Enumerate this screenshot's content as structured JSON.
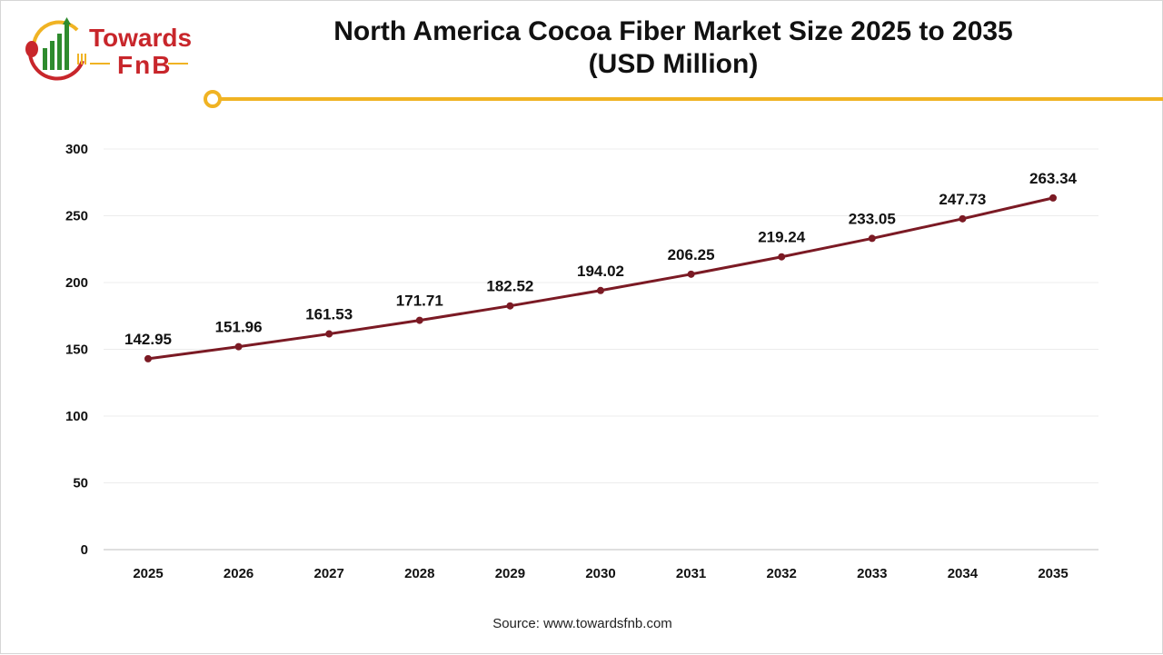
{
  "logo": {
    "line1": "Towards",
    "line2": "FnB"
  },
  "title_line1": "North America Cocoa Fiber Market Size 2025 to 2035",
  "title_line2": "(USD Million)",
  "source": "Source: www.towardsfnb.com",
  "colors": {
    "line": "#7b1a24",
    "accent": "#f0b323",
    "brand_red": "#c8262b",
    "brand_green": "#2e8b2e"
  },
  "chart_data": {
    "type": "line",
    "title": "North America Cocoa Fiber Market Size 2025 to 2035 (USD Million)",
    "categories": [
      "2025",
      "2026",
      "2027",
      "2028",
      "2029",
      "2030",
      "2031",
      "2032",
      "2033",
      "2034",
      "2035"
    ],
    "values": [
      142.95,
      151.96,
      161.53,
      171.71,
      182.52,
      194.02,
      206.25,
      219.24,
      233.05,
      247.73,
      263.34
    ],
    "data_labels": [
      "142.95",
      "151.96",
      "161.53",
      "171.71",
      "182.52",
      "194.02",
      "206.25",
      "219.24",
      "233.05",
      "247.73",
      "263.34"
    ],
    "ylim": [
      0,
      300
    ],
    "yticks": [
      "0",
      "50",
      "100",
      "150",
      "200",
      "250",
      "300"
    ],
    "grid": true,
    "xlabel": "",
    "ylabel": ""
  }
}
